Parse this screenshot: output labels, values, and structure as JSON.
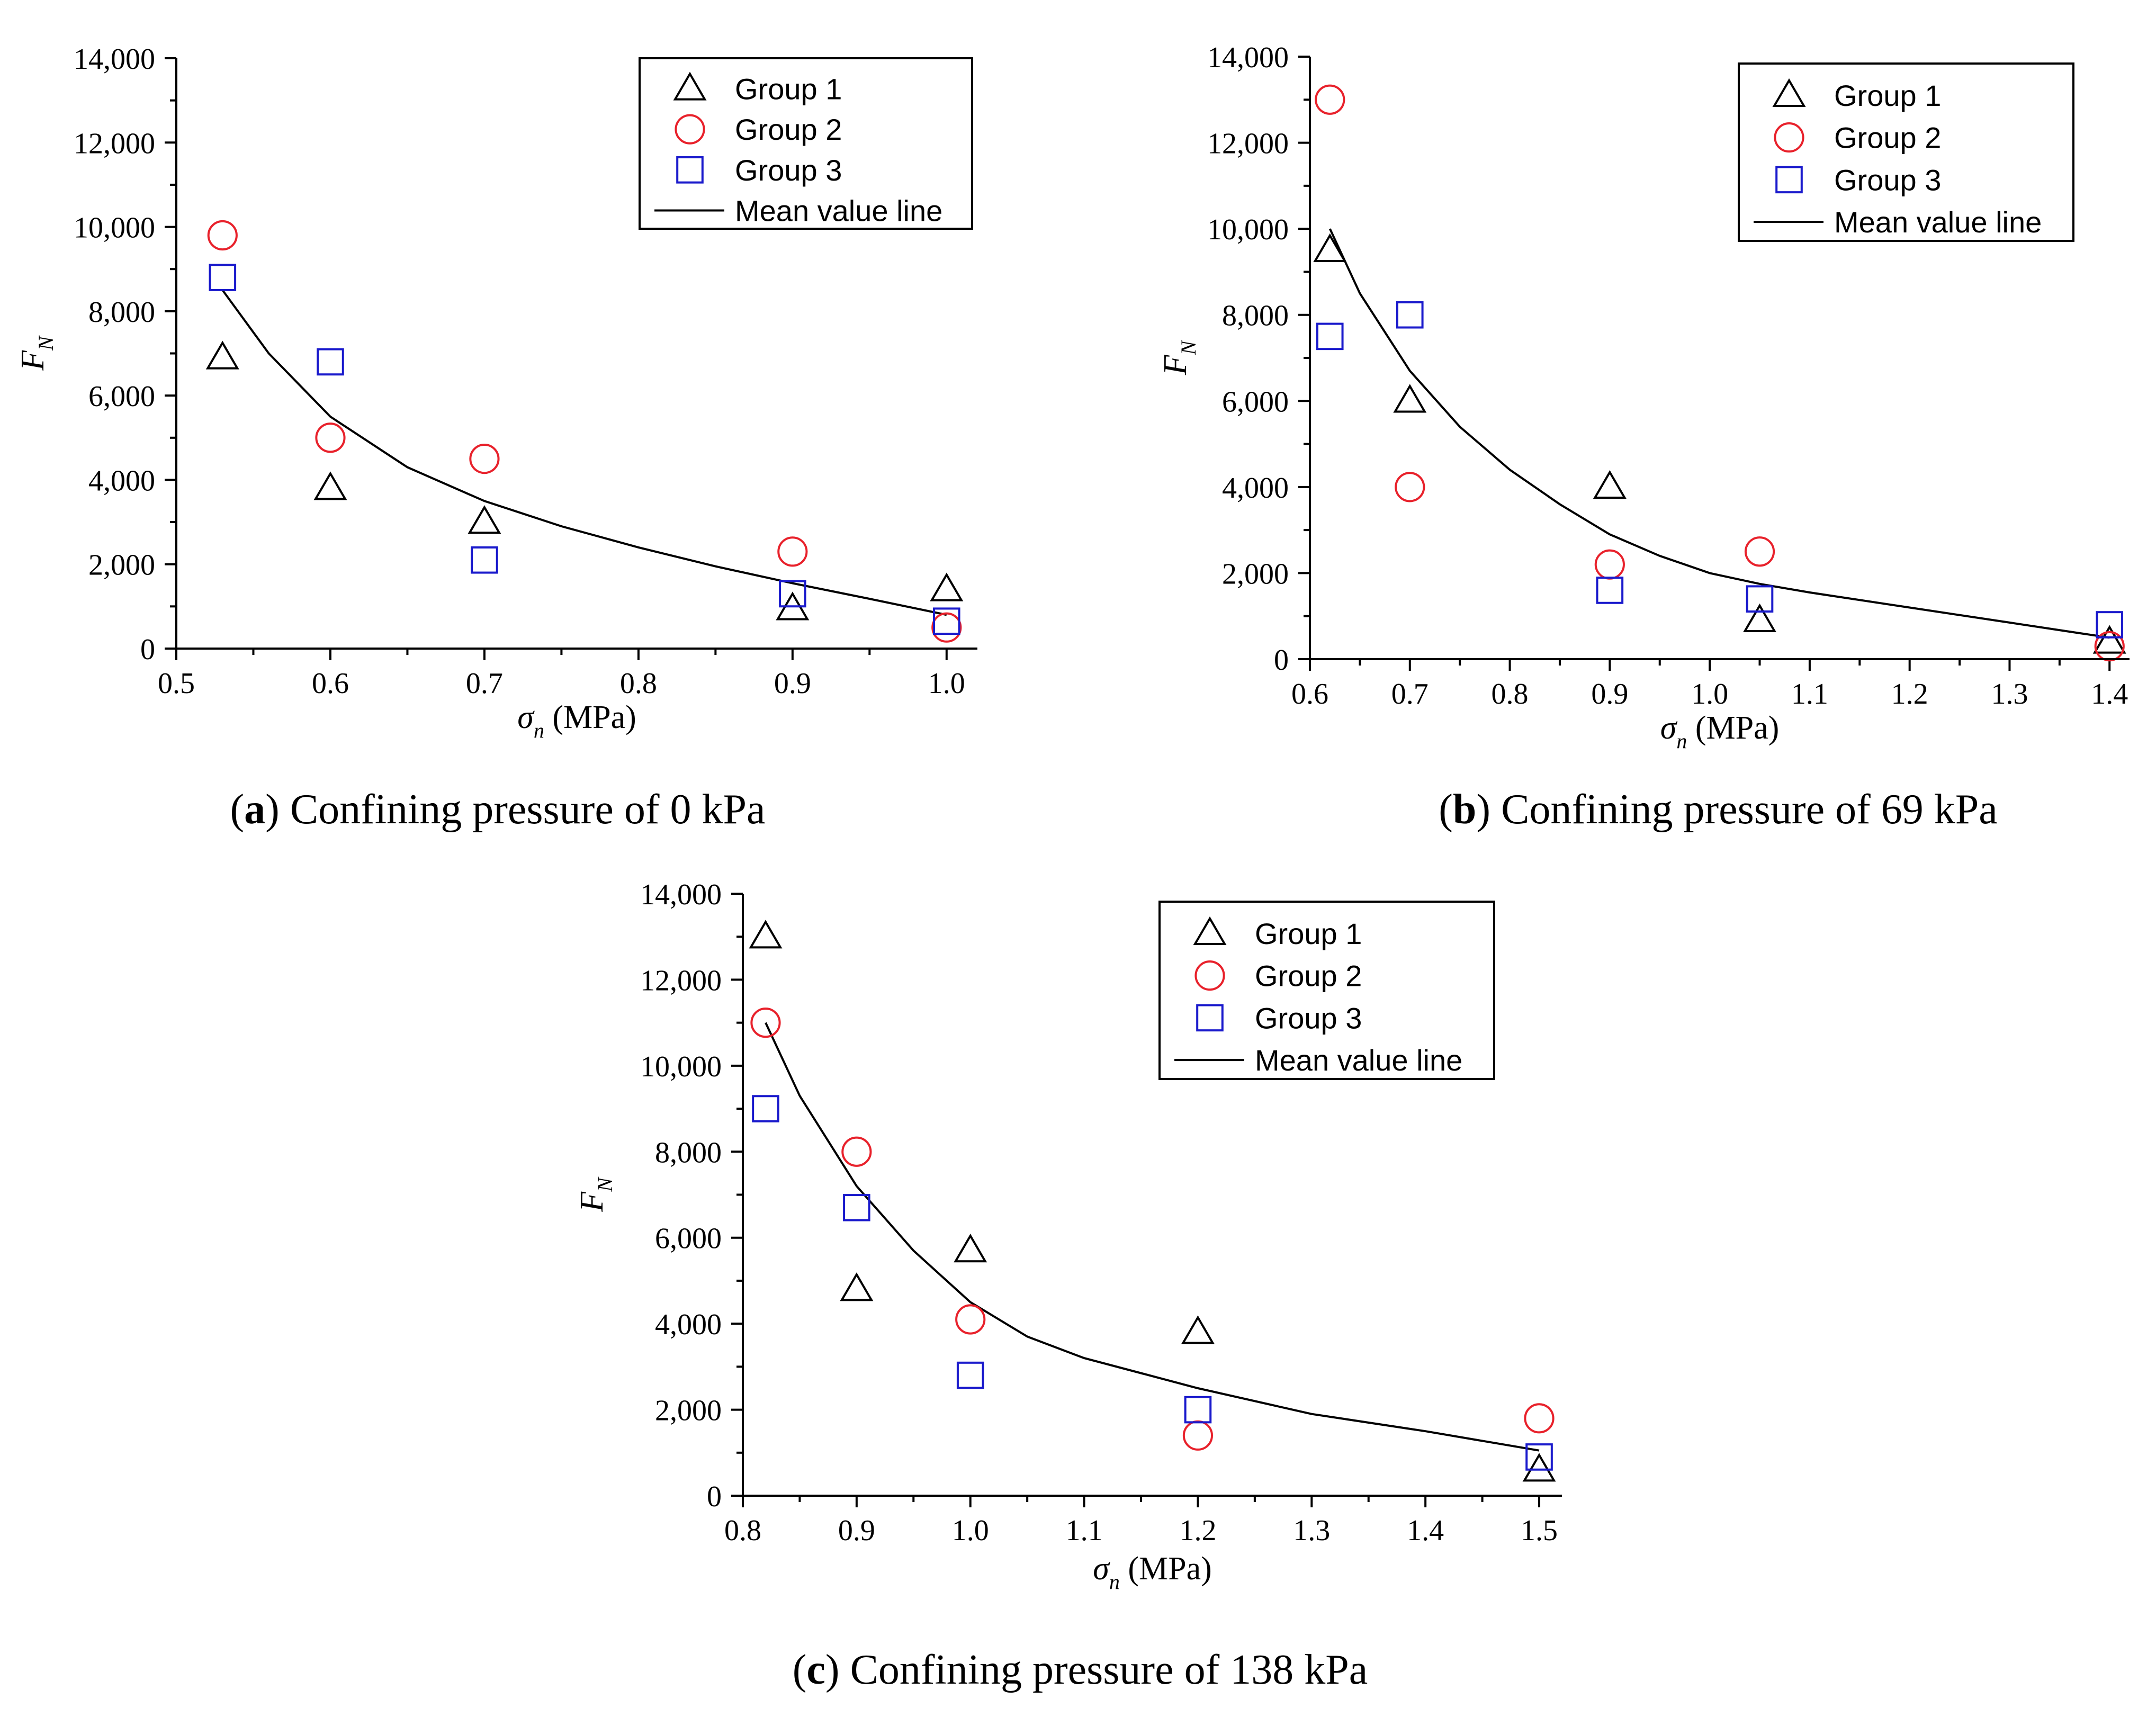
{
  "chart_data": [
    {
      "type": "scatter",
      "panel": "a",
      "caption_letter": "a",
      "caption_text": ") Confining pressure of 0 kPa",
      "xlabel_symbol": "σ",
      "xlabel_sub": "n",
      "xlabel_unit": " (MPa)",
      "ylabel_symbol": "F",
      "ylabel_sub": "N",
      "xlim": [
        0.5,
        1.02
      ],
      "ylim": [
        0,
        14000
      ],
      "xticks": [
        0.5,
        0.6,
        0.7,
        0.8,
        0.9,
        1.0
      ],
      "xtick_labels": [
        "0.5",
        "0.6",
        "0.7",
        "0.8",
        "0.9",
        "1.0"
      ],
      "yticks": [
        0,
        2000,
        4000,
        6000,
        8000,
        10000,
        12000,
        14000
      ],
      "ytick_labels": [
        "0",
        "2,000",
        "4,000",
        "6,000",
        "8,000",
        "10,000",
        "12,000",
        "14,000"
      ],
      "series": [
        {
          "name": "Group 1",
          "marker": "triangle",
          "color": "#000000",
          "x": [
            0.53,
            0.6,
            0.7,
            0.9,
            1.0
          ],
          "y": [
            6900,
            3800,
            3000,
            950,
            1400
          ]
        },
        {
          "name": "Group 2",
          "marker": "circle",
          "color": "#e8212b",
          "x": [
            0.53,
            0.6,
            0.7,
            0.9,
            1.0
          ],
          "y": [
            9800,
            5000,
            4500,
            2300,
            500
          ]
        },
        {
          "name": "Group 3",
          "marker": "square",
          "color": "#1a1acc",
          "x": [
            0.53,
            0.6,
            0.7,
            0.9,
            1.0
          ],
          "y": [
            8800,
            6800,
            2100,
            1300,
            650
          ]
        }
      ],
      "mean_line": {
        "name": "Mean value line",
        "x": [
          0.53,
          0.56,
          0.6,
          0.65,
          0.7,
          0.75,
          0.8,
          0.85,
          0.9,
          0.95,
          1.0
        ],
        "y": [
          8500,
          7000,
          5500,
          4300,
          3500,
          2900,
          2400,
          1950,
          1550,
          1180,
          800
        ]
      }
    },
    {
      "type": "scatter",
      "panel": "b",
      "caption_letter": "b",
      "caption_text": ") Confining pressure of 69 kPa",
      "xlabel_symbol": "σ",
      "xlabel_sub": "n",
      "xlabel_unit": " (MPa)",
      "ylabel_symbol": "F",
      "ylabel_sub": "N",
      "xlim": [
        0.6,
        1.42
      ],
      "ylim": [
        0,
        14000
      ],
      "xticks": [
        0.6,
        0.7,
        0.8,
        0.9,
        1.0,
        1.1,
        1.2,
        1.3,
        1.4
      ],
      "xtick_labels": [
        "0.6",
        "0.7",
        "0.8",
        "0.9",
        "1.0",
        "1.1",
        "1.2",
        "1.3",
        "1.4"
      ],
      "yticks": [
        0,
        2000,
        4000,
        6000,
        8000,
        10000,
        12000,
        14000
      ],
      "ytick_labels": [
        "0",
        "2,000",
        "4,000",
        "6,000",
        "8,000",
        "10,000",
        "12,000",
        "14,000"
      ],
      "series": [
        {
          "name": "Group 1",
          "marker": "triangle",
          "color": "#000000",
          "x": [
            0.62,
            0.7,
            0.9,
            1.05,
            1.4
          ],
          "y": [
            9500,
            6000,
            4000,
            900,
            400
          ]
        },
        {
          "name": "Group 2",
          "marker": "circle",
          "color": "#e8212b",
          "x": [
            0.62,
            0.7,
            0.9,
            1.05,
            1.4
          ],
          "y": [
            13000,
            4000,
            2200,
            2500,
            300
          ]
        },
        {
          "name": "Group 3",
          "marker": "square",
          "color": "#1a1acc",
          "x": [
            0.62,
            0.7,
            0.9,
            1.05,
            1.4
          ],
          "y": [
            7500,
            8000,
            1600,
            1400,
            800
          ]
        }
      ],
      "mean_line": {
        "name": "Mean value line",
        "x": [
          0.62,
          0.65,
          0.7,
          0.75,
          0.8,
          0.85,
          0.9,
          0.95,
          1.0,
          1.05,
          1.1,
          1.2,
          1.3,
          1.4
        ],
        "y": [
          10000,
          8500,
          6700,
          5400,
          4400,
          3600,
          2900,
          2400,
          2000,
          1750,
          1550,
          1200,
          850,
          500
        ]
      }
    },
    {
      "type": "scatter",
      "panel": "c",
      "caption_letter": "c",
      "caption_text": ") Confining pressure of 138 kPa",
      "xlabel_symbol": "σ",
      "xlabel_sub": "n",
      "xlabel_unit": " (MPa)",
      "ylabel_symbol": "F",
      "ylabel_sub": "N",
      "xlim": [
        0.8,
        1.52
      ],
      "ylim": [
        0,
        14000
      ],
      "xticks": [
        0.8,
        0.9,
        1.0,
        1.1,
        1.2,
        1.3,
        1.4,
        1.5
      ],
      "xtick_labels": [
        "0.8",
        "0.9",
        "1.0",
        "1.1",
        "1.2",
        "1.3",
        "1.4",
        "1.5"
      ],
      "yticks": [
        0,
        2000,
        4000,
        6000,
        8000,
        10000,
        12000,
        14000
      ],
      "ytick_labels": [
        "0",
        "2,000",
        "4,000",
        "6,000",
        "8,000",
        "10,000",
        "12,000",
        "14,000"
      ],
      "series": [
        {
          "name": "Group 1",
          "marker": "triangle",
          "color": "#000000",
          "x": [
            0.82,
            0.9,
            1.0,
            1.2,
            1.5
          ],
          "y": [
            13000,
            4800,
            5700,
            3800,
            600
          ]
        },
        {
          "name": "Group 2",
          "marker": "circle",
          "color": "#e8212b",
          "x": [
            0.82,
            0.9,
            1.0,
            1.2,
            1.5
          ],
          "y": [
            11000,
            8000,
            4100,
            1400,
            1800
          ]
        },
        {
          "name": "Group 3",
          "marker": "square",
          "color": "#1a1acc",
          "x": [
            0.82,
            0.9,
            1.0,
            1.2,
            1.5
          ],
          "y": [
            9000,
            6700,
            2800,
            2000,
            900
          ]
        }
      ],
      "mean_line": {
        "name": "Mean value line",
        "x": [
          0.82,
          0.85,
          0.9,
          0.95,
          1.0,
          1.05,
          1.1,
          1.2,
          1.3,
          1.4,
          1.5
        ],
        "y": [
          11000,
          9300,
          7200,
          5700,
          4500,
          3700,
          3200,
          2500,
          1900,
          1500,
          1050
        ]
      }
    }
  ]
}
